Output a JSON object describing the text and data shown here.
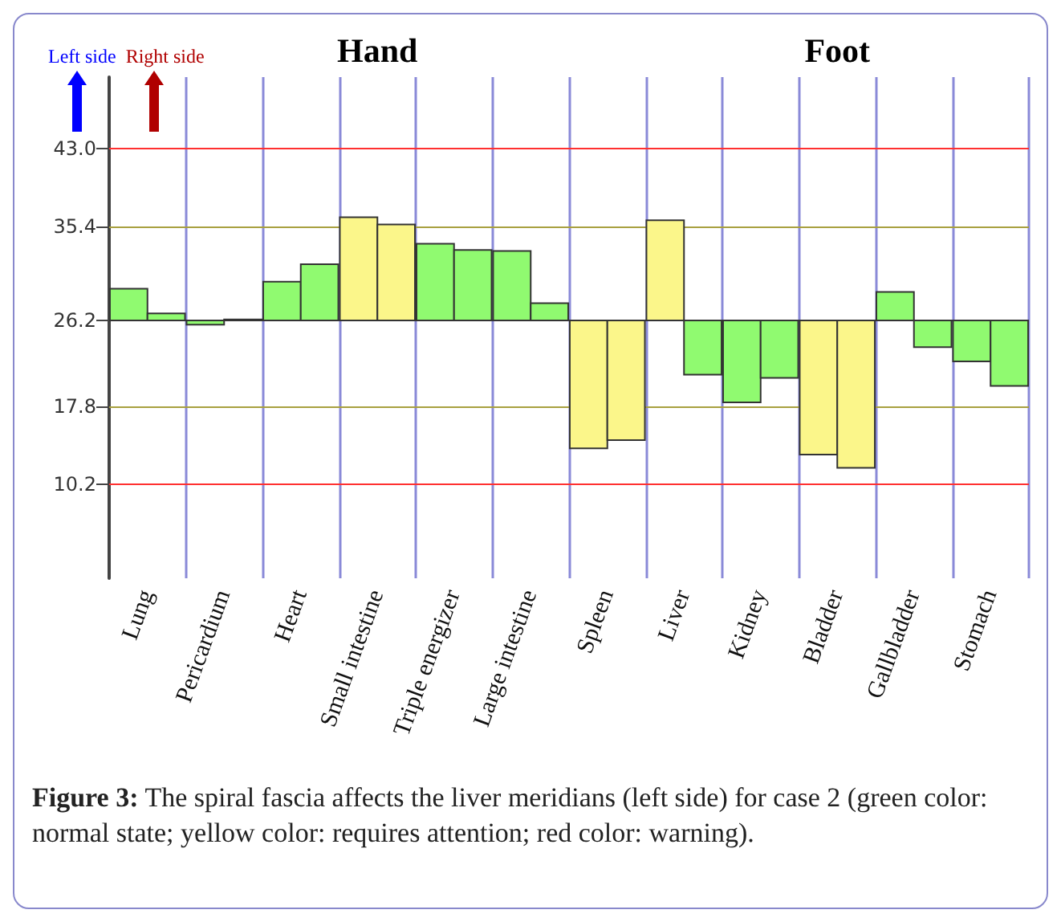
{
  "chart_data": {
    "type": "bar",
    "categories": [
      "Lung",
      "Pericardium",
      "Heart",
      "Small intestine",
      "Triple energizer",
      "Large intestine",
      "Spleen",
      "Liver",
      "Kidney",
      "Bladder",
      "Gallbladder",
      "Stomach"
    ],
    "series": [
      {
        "base": [
          26.2,
          26.2,
          26.2,
          26.2,
          26.2,
          26.2,
          26.2,
          26.2,
          26.2,
          26.2,
          26.2,
          26.2
        ],
        "values": [
          3.1,
          -0.4,
          3.8,
          10.1,
          7.5,
          6.8,
          -12.5,
          9.8,
          -8.0,
          -13.1,
          2.8,
          -4.0
        ],
        "colors": [
          "#90fa70",
          "#90fa70",
          "#90fa70",
          "#fbf68a",
          "#90fa70",
          "#90fa70",
          "#fbf68a",
          "#fbf68a",
          "#90fa70",
          "#fbf68a",
          "#90fa70",
          "#90fa70"
        ]
      },
      {
        "base": [
          26.2,
          26.2,
          26.2,
          26.2,
          26.2,
          26.2,
          26.2,
          26.2,
          26.2,
          26.2,
          26.2,
          26.2
        ],
        "values": [
          0.7,
          0.1,
          5.5,
          9.4,
          6.9,
          1.7,
          -11.7,
          -5.3,
          -5.6,
          -14.4,
          -2.6,
          -6.4
        ],
        "colors": [
          "#90fa70",
          "#90fa70",
          "#90fa70",
          "#fbf68a",
          "#90fa70",
          "#90fa70",
          "#fbf68a",
          "#90fa70",
          "#90fa70",
          "#fbf68a",
          "#90fa70",
          "#90fa70"
        ]
      }
    ],
    "ylim": [
      1,
      50
    ],
    "yticks": [
      {
        "value": 10.2,
        "label": "10.2"
      },
      {
        "value": 17.8,
        "label": "17.8"
      },
      {
        "value": 26.2,
        "label": "26.2"
      },
      {
        "value": 35.4,
        "label": "35.4"
      },
      {
        "value": 43,
        "label": "43.0"
      }
    ],
    "ref_lines": [
      {
        "axis": "y",
        "value": 43,
        "color": "#ff3030"
      },
      {
        "axis": "y",
        "value": 35.4,
        "color": "#a8a040"
      },
      {
        "axis": "y",
        "value": 26.2,
        "color": "#202060"
      },
      {
        "axis": "y",
        "value": 17.8,
        "color": "#a8a040"
      },
      {
        "axis": "y",
        "value": 10.2,
        "color": "#ff3030"
      }
    ],
    "grid": "x",
    "annotations": [
      "Left side",
      "Right side",
      "Hand",
      "Foot",
      "Figure 3: The spiral fascia affects the liver meridians (left side) for case 2 (green color: normal state; yellow color: requires attention; red color: warning)."
    ]
  }
}
